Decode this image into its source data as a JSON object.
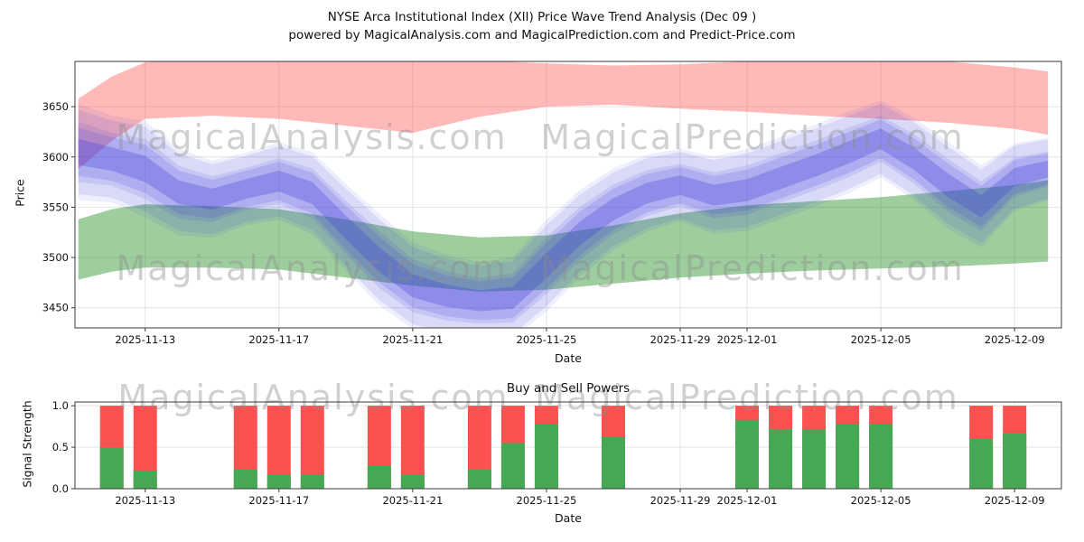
{
  "watermarks": {
    "left_text": "MagicalAnalysis.com",
    "right_text": "MagicalPrediction.com",
    "color": "#8c8c8c",
    "opacity": 0.4
  },
  "chart_data": [
    {
      "type": "area",
      "title": "NYSE Arca Institutional Index (XII) Price Wave Trend Analysis (Dec 09 )",
      "subtitle": "powered by MagicalAnalysis.com and MagicalPrediction.com and Predict-Price.com",
      "xlabel": "Date",
      "ylabel": "Price",
      "x_start_date": "2025-11-11",
      "x_domain_days": [
        -0.1,
        29.4
      ],
      "ylim": [
        3430,
        3695
      ],
      "y_ticks": [
        3450,
        3500,
        3550,
        3600,
        3650
      ],
      "x_ticks": [
        {
          "day": 2,
          "label": "2025-11-13"
        },
        {
          "day": 6,
          "label": "2025-11-17"
        },
        {
          "day": 10,
          "label": "2025-11-21"
        },
        {
          "day": 14,
          "label": "2025-11-25"
        },
        {
          "day": 18,
          "label": "2025-11-29"
        },
        {
          "day": 20,
          "label": "2025-12-01"
        },
        {
          "day": 24,
          "label": "2025-12-05"
        },
        {
          "day": 28,
          "label": "2025-12-09"
        }
      ],
      "bands": {
        "resistance": {
          "name": "upper-resistance-band",
          "color": "#ff2a2a",
          "opacity": 0.33,
          "points": [
            [
              0,
              3588,
              3658
            ],
            [
              1,
              3616,
              3680
            ],
            [
              2,
              3638,
              3694
            ],
            [
              4,
              3641,
              3702
            ],
            [
              6,
              3638,
              3704
            ],
            [
              8,
              3631,
              3701
            ],
            [
              10,
              3624,
              3697
            ],
            [
              12,
              3640,
              3696
            ],
            [
              14,
              3650,
              3693
            ],
            [
              16,
              3652,
              3691
            ],
            [
              18,
              3648,
              3692
            ],
            [
              20,
              3645,
              3695
            ],
            [
              22,
              3641,
              3697
            ],
            [
              24,
              3638,
              3698
            ],
            [
              26,
              3634,
              3695
            ],
            [
              28,
              3628,
              3689
            ],
            [
              29,
              3622,
              3685
            ]
          ]
        },
        "support": {
          "name": "lower-support-band",
          "color": "#007d00",
          "opacity": 0.38,
          "points": [
            [
              0,
              3478,
              3538
            ],
            [
              1,
              3486,
              3548
            ],
            [
              2,
              3490,
              3553
            ],
            [
              4,
              3490,
              3551
            ],
            [
              6,
              3488,
              3548
            ],
            [
              8,
              3480,
              3538
            ],
            [
              10,
              3472,
              3526
            ],
            [
              12,
              3466,
              3520
            ],
            [
              14,
              3468,
              3522
            ],
            [
              16,
              3474,
              3532
            ],
            [
              18,
              3480,
              3544
            ],
            [
              20,
              3484,
              3552
            ],
            [
              22,
              3487,
              3556
            ],
            [
              24,
              3489,
              3560
            ],
            [
              26,
              3491,
              3566
            ],
            [
              28,
              3494,
              3572
            ],
            [
              29,
              3496,
              3577
            ]
          ]
        },
        "wave": {
          "name": "price-wave-band",
          "color": "#4343dc",
          "days": [
            0,
            1,
            2,
            3,
            4,
            5,
            6,
            7,
            8,
            9,
            10,
            11,
            12,
            13,
            14,
            15,
            16,
            17,
            18,
            19,
            20,
            21,
            22,
            23,
            24,
            25,
            26,
            27,
            28,
            29
          ],
          "center": [
            3605,
            3598,
            3588,
            3565,
            3558,
            3568,
            3576,
            3564,
            3530,
            3498,
            3472,
            3462,
            3457,
            3460,
            3492,
            3524,
            3548,
            3564,
            3572,
            3562,
            3567,
            3579,
            3591,
            3604,
            3618,
            3598,
            3572,
            3551,
            3580,
            3588
          ],
          "half_width": [
            20,
            18,
            20,
            18,
            16,
            15,
            16,
            17,
            18,
            19,
            18,
            17,
            16,
            17,
            19,
            18,
            17,
            16,
            15,
            16,
            17,
            17,
            17,
            17,
            16,
            17,
            18,
            17,
            14,
            13
          ],
          "layers": [
            {
              "scale": 2.4,
              "offset": 0,
              "opacity": 0.09
            },
            {
              "scale": 1.8,
              "offset": 6,
              "opacity": 0.12
            },
            {
              "scale": 1.8,
              "offset": -6,
              "opacity": 0.12
            },
            {
              "scale": 1.2,
              "offset": 0,
              "opacity": 0.18
            },
            {
              "scale": 0.65,
              "offset": 0,
              "opacity": 0.3
            }
          ]
        }
      }
    },
    {
      "type": "bar",
      "title": "Buy and Sell Powers",
      "xlabel": "Date",
      "ylabel": "Signal Strength",
      "ylim": [
        0,
        1.045
      ],
      "y_ticks": [
        0,
        0.5,
        1
      ],
      "x_ticks": [
        {
          "day": 2,
          "label": "2025-11-13"
        },
        {
          "day": 6,
          "label": "2025-11-17"
        },
        {
          "day": 10,
          "label": "2025-11-21"
        },
        {
          "day": 14,
          "label": "2025-11-25"
        },
        {
          "day": 18,
          "label": "2025-11-29"
        },
        {
          "day": 20,
          "label": "2025-12-01"
        },
        {
          "day": 24,
          "label": "2025-12-05"
        },
        {
          "day": 28,
          "label": "2025-12-09"
        }
      ],
      "series": [
        {
          "name": "sell-power",
          "color": "#fb5151"
        },
        {
          "name": "buy-power",
          "color": "#44a855"
        }
      ],
      "bars": [
        {
          "date": "2025-11-12",
          "day": 1,
          "sell": 1.0,
          "buy": 0.5
        },
        {
          "date": "2025-11-13",
          "day": 2,
          "sell": 1.0,
          "buy": 0.22
        },
        {
          "date": "2025-11-16",
          "day": 5,
          "sell": 1.0,
          "buy": 0.23
        },
        {
          "date": "2025-11-17",
          "day": 6,
          "sell": 1.0,
          "buy": 0.17
        },
        {
          "date": "2025-11-18",
          "day": 7,
          "sell": 1.0,
          "buy": 0.17
        },
        {
          "date": "2025-11-20",
          "day": 9,
          "sell": 1.0,
          "buy": 0.28
        },
        {
          "date": "2025-11-21",
          "day": 10,
          "sell": 1.0,
          "buy": 0.17
        },
        {
          "date": "2025-11-23",
          "day": 12,
          "sell": 1.0,
          "buy": 0.23
        },
        {
          "date": "2025-11-24",
          "day": 13,
          "sell": 1.0,
          "buy": 0.55
        },
        {
          "date": "2025-11-25",
          "day": 14,
          "sell": 1.0,
          "buy": 0.78
        },
        {
          "date": "2025-11-27",
          "day": 16,
          "sell": 1.0,
          "buy": 0.62
        },
        {
          "date": "2025-12-01",
          "day": 20,
          "sell": 1.0,
          "buy": 0.83
        },
        {
          "date": "2025-12-02",
          "day": 21,
          "sell": 1.0,
          "buy": 0.72
        },
        {
          "date": "2025-12-03",
          "day": 22,
          "sell": 1.0,
          "buy": 0.72
        },
        {
          "date": "2025-12-04",
          "day": 23,
          "sell": 1.0,
          "buy": 0.78
        },
        {
          "date": "2025-12-05",
          "day": 24,
          "sell": 1.0,
          "buy": 0.78
        },
        {
          "date": "2025-12-08",
          "day": 27,
          "sell": 1.0,
          "buy": 0.6
        },
        {
          "date": "2025-12-09",
          "day": 28,
          "sell": 1.0,
          "buy": 0.67
        }
      ]
    }
  ]
}
